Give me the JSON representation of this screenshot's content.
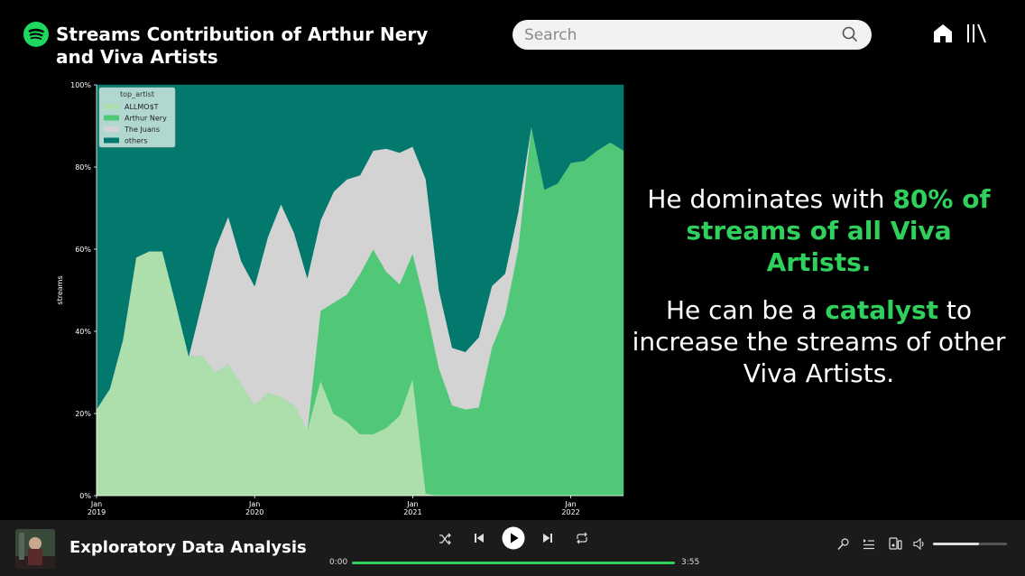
{
  "header": {
    "title_line1": "Streams Contribution of Arthur Nery",
    "title_line2": "and Viva Artists",
    "search_placeholder": "Search"
  },
  "colors": {
    "spotify_green": "#1ed760",
    "highlight_green": "#2fd15c",
    "allmost": "#acdfac",
    "arthur_nery": "#50c878",
    "the_juans": "#d3d3d3",
    "others": "#03796e"
  },
  "chart_data": {
    "type": "area",
    "stacked": true,
    "normalized": true,
    "ylabel": "streams",
    "yticks": [
      "0%",
      "20%",
      "40%",
      "60%",
      "80%",
      "100%"
    ],
    "ylim": [
      0,
      100
    ],
    "xticks": [
      {
        "line1": "Jan",
        "line2": "2019",
        "x": 0
      },
      {
        "line1": "Jan",
        "line2": "2020",
        "x": 12
      },
      {
        "line1": "Jan",
        "line2": "2021",
        "x": 24
      },
      {
        "line1": "Jan",
        "line2": "2022",
        "x": 36
      }
    ],
    "legend": {
      "title": "top_artist",
      "position": "top-left"
    },
    "months": [
      0,
      1,
      2,
      3,
      4,
      5,
      6,
      7,
      8,
      9,
      10,
      11,
      12,
      13,
      14,
      15,
      16,
      17,
      18,
      19,
      20,
      21,
      22,
      23,
      24,
      25,
      26,
      27,
      28,
      29,
      30,
      31,
      32,
      33,
      34,
      35,
      36,
      37,
      38,
      39,
      40
    ],
    "series": [
      {
        "name": "ALLMO$T",
        "color": "#acdfac",
        "values": [
          21,
          26,
          38,
          58,
          59.5,
          59.5,
          47,
          34,
          34,
          30,
          32,
          27,
          22,
          25,
          24,
          22,
          16,
          28,
          20,
          18,
          15,
          15,
          16.5,
          19.5,
          28.5,
          0.5,
          0,
          0,
          0,
          0,
          0,
          0,
          0,
          0,
          0,
          0,
          0,
          0,
          0,
          0,
          0
        ]
      },
      {
        "name": "Arthur Nery",
        "color": "#50c878",
        "values": [
          0,
          0,
          0,
          0,
          0,
          0,
          0,
          0,
          0,
          0,
          0,
          0,
          0,
          0,
          0,
          0,
          0,
          17,
          27,
          31,
          39,
          45,
          38,
          32,
          30.5,
          45.5,
          31,
          22,
          21,
          21.5,
          36,
          44,
          60,
          90,
          74.5,
          76,
          81,
          81.5,
          84,
          86,
          84
        ]
      },
      {
        "name": "The Juans",
        "color": "#d3d3d3",
        "values": [
          0,
          0,
          0,
          0,
          0,
          0,
          0,
          0,
          13,
          30,
          36,
          30,
          29,
          38,
          47,
          42,
          37,
          22,
          27,
          28,
          24,
          24,
          30,
          32,
          26,
          31,
          19,
          14,
          14,
          17,
          15,
          10,
          9,
          0,
          0,
          0,
          0,
          0,
          0,
          0,
          0
        ]
      },
      {
        "name": "others",
        "color": "#03796e",
        "values": [
          79,
          74,
          62,
          42,
          40.5,
          40.5,
          53,
          66,
          53,
          40,
          32,
          43,
          49,
          37,
          29,
          36,
          47,
          33,
          26,
          23,
          22,
          16,
          15.5,
          16.5,
          15,
          23,
          50,
          64,
          65,
          61.5,
          49,
          46,
          31,
          10,
          25.5,
          24,
          19,
          18.5,
          16,
          14,
          16
        ]
      }
    ]
  },
  "message": {
    "line1_pre": "He dominates with ",
    "line1_highlight": "80% of streams of all Viva Artists.",
    "line2_pre": "He can be a ",
    "line2_highlight": "catalyst",
    "line2_post": " to increase the streams of other Viva Artists."
  },
  "player": {
    "track_title": "Exploratory Data Analysis",
    "time_elapsed": "0:00",
    "time_total": "3:55",
    "progress": 1.0,
    "volume": 0.62
  }
}
